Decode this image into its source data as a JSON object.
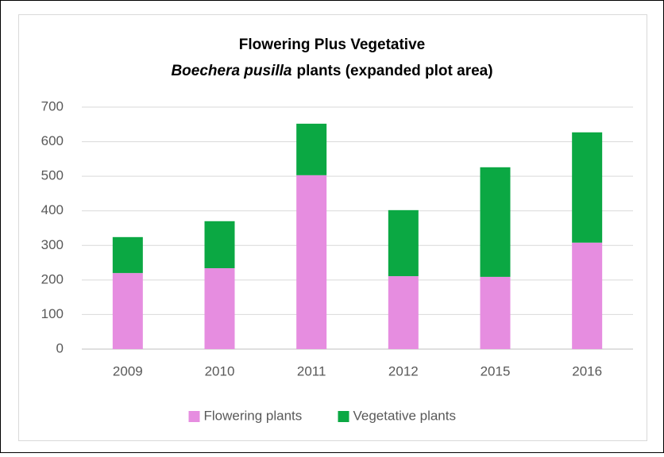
{
  "chart_data": {
    "type": "stacked_bar",
    "title": [
      "Flowering Plus Vegetative",
      "Boechera pusilla",
      "plants (expanded plot area)"
    ],
    "categories": [
      "2009",
      "2010",
      "2011",
      "2012",
      "2015",
      "2016"
    ],
    "series": [
      {
        "name": "Flowering plants",
        "color": "#e68de0",
        "values": [
          220,
          234,
          503,
          211,
          209,
          308
        ]
      },
      {
        "name": "Vegetative plants",
        "color": "#0ba843",
        "values": [
          104,
          136,
          149,
          191,
          317,
          319
        ]
      }
    ],
    "ylim": [
      0,
      700
    ],
    "yticks": [
      0,
      100,
      200,
      300,
      400,
      500,
      600,
      700
    ],
    "grid": true,
    "legend": "bottom"
  }
}
